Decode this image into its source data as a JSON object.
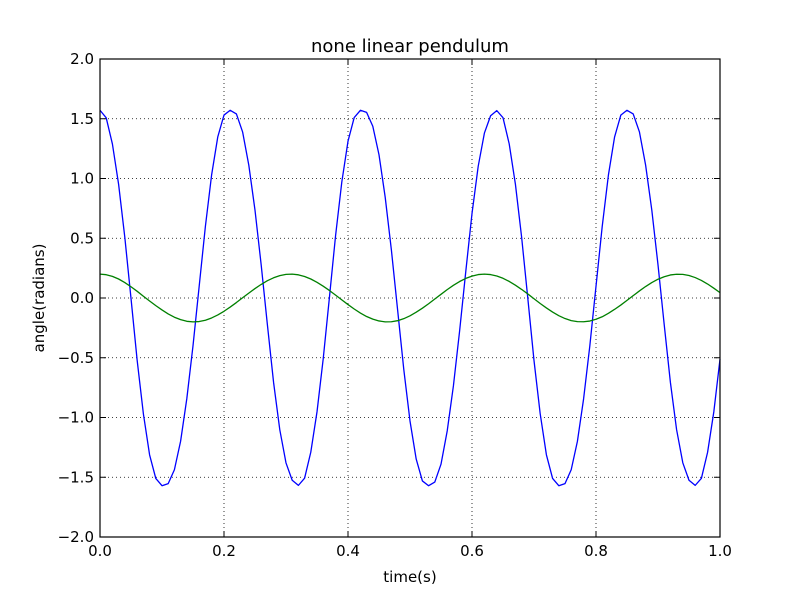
{
  "chart_data": {
    "type": "line",
    "title": "none linear pendulum",
    "xlabel": "time(s)",
    "ylabel": "angle(radians)",
    "xlim": [
      0.0,
      1.0
    ],
    "ylim": [
      -2.0,
      2.0
    ],
    "grid": true,
    "x_ticks": [
      "0.0",
      "0.2",
      "0.4",
      "0.6",
      "0.8",
      "1.0"
    ],
    "y_ticks": [
      "2.0",
      "1.5",
      "1.0",
      "0.5",
      "0.0",
      "−0.5",
      "−1.0",
      "−1.5",
      "−2.0"
    ],
    "series": [
      {
        "color": "#0000ff",
        "x": [
          0.0,
          0.01,
          0.02,
          0.03,
          0.04,
          0.05,
          0.06,
          0.07,
          0.08,
          0.09,
          0.1,
          0.11,
          0.12,
          0.13,
          0.14,
          0.15,
          0.16,
          0.17,
          0.18,
          0.19,
          0.2,
          0.21,
          0.22,
          0.23,
          0.24,
          0.25,
          0.26,
          0.27,
          0.28,
          0.29,
          0.3,
          0.31,
          0.32,
          0.33,
          0.34,
          0.35,
          0.36,
          0.37,
          0.38,
          0.39,
          0.4,
          0.41,
          0.42,
          0.43,
          0.44,
          0.45,
          0.46,
          0.47,
          0.48,
          0.49,
          0.5,
          0.51,
          0.52,
          0.53,
          0.54,
          0.55,
          0.56,
          0.57,
          0.58,
          0.59,
          0.6,
          0.61,
          0.62,
          0.63,
          0.64,
          0.65,
          0.66,
          0.67,
          0.68,
          0.69,
          0.7,
          0.71,
          0.72,
          0.73,
          0.74,
          0.75,
          0.76,
          0.77,
          0.78,
          0.79,
          0.8,
          0.81,
          0.82,
          0.83,
          0.84,
          0.85,
          0.86,
          0.87,
          0.88,
          0.89,
          0.9,
          0.91,
          0.92,
          0.93,
          0.94,
          0.95,
          0.96,
          0.97,
          0.98,
          0.99,
          1.0
        ],
        "y": [
          1.571,
          1.508,
          1.289,
          0.952,
          0.509,
          -0.003,
          -0.525,
          -0.97,
          -1.313,
          -1.51,
          -1.571,
          -1.553,
          -1.437,
          -1.199,
          -0.843,
          -0.4,
          0.1,
          0.6,
          1.029,
          1.349,
          1.531,
          1.571,
          1.54,
          1.39,
          1.112,
          0.735,
          0.276,
          -0.224,
          -0.708,
          -1.103,
          -1.38,
          -1.525,
          -1.568,
          -1.508,
          -1.29,
          -0.953,
          -0.51,
          0.003,
          0.524,
          0.97,
          1.312,
          1.51,
          1.571,
          1.553,
          1.437,
          1.199,
          0.843,
          0.401,
          -0.099,
          -0.599,
          -1.029,
          -1.348,
          -1.531,
          -1.571,
          -1.54,
          -1.391,
          -1.113,
          -0.736,
          -0.277,
          0.223,
          0.707,
          1.102,
          1.38,
          1.525,
          1.568,
          1.509,
          1.29,
          0.953,
          0.511,
          -0.002,
          -0.523,
          -0.969,
          -1.312,
          -1.51,
          -1.571,
          -1.553,
          -1.437,
          -1.2,
          -0.844,
          -0.402,
          0.098,
          0.598,
          1.028,
          1.348,
          1.53,
          1.571,
          1.54,
          1.391,
          1.113,
          0.736,
          0.278,
          -0.222,
          -0.706,
          -1.102,
          -1.379,
          -1.525,
          -1.568,
          -1.509,
          -1.291,
          -0.954,
          -0.512
        ]
      },
      {
        "color": "#008000",
        "x": [
          0.0,
          0.01,
          0.02,
          0.03,
          0.04,
          0.05,
          0.06,
          0.07,
          0.08,
          0.09,
          0.1,
          0.11,
          0.12,
          0.13,
          0.14,
          0.15,
          0.16,
          0.17,
          0.18,
          0.19,
          0.2,
          0.21,
          0.22,
          0.23,
          0.24,
          0.25,
          0.26,
          0.27,
          0.28,
          0.29,
          0.3,
          0.31,
          0.32,
          0.33,
          0.34,
          0.35,
          0.36,
          0.37,
          0.38,
          0.39,
          0.4,
          0.41,
          0.42,
          0.43,
          0.44,
          0.45,
          0.46,
          0.47,
          0.48,
          0.49,
          0.5,
          0.51,
          0.52,
          0.53,
          0.54,
          0.55,
          0.56,
          0.57,
          0.58,
          0.59,
          0.6,
          0.61,
          0.62,
          0.63,
          0.64,
          0.65,
          0.66,
          0.67,
          0.68,
          0.69,
          0.7,
          0.71,
          0.72,
          0.73,
          0.74,
          0.75,
          0.76,
          0.77,
          0.78,
          0.79,
          0.8,
          0.81,
          0.82,
          0.83,
          0.84,
          0.85,
          0.86,
          0.87,
          0.88,
          0.89,
          0.9,
          0.91,
          0.92,
          0.93,
          0.94,
          0.95,
          0.96,
          0.97,
          0.98,
          0.99,
          1.0
        ],
        "y": [
          0.2,
          0.195,
          0.181,
          0.159,
          0.129,
          0.094,
          0.056,
          0.015,
          -0.025,
          -0.064,
          -0.1,
          -0.133,
          -0.161,
          -0.181,
          -0.195,
          -0.2,
          -0.197,
          -0.186,
          -0.167,
          -0.142,
          -0.111,
          -0.076,
          -0.038,
          0.002,
          0.041,
          0.079,
          0.114,
          0.145,
          0.169,
          0.187,
          0.198,
          0.2,
          0.194,
          0.18,
          0.159,
          0.131,
          0.099,
          0.063,
          0.024,
          -0.016,
          -0.055,
          -0.092,
          -0.126,
          -0.155,
          -0.177,
          -0.192,
          -0.2,
          -0.199,
          -0.19,
          -0.173,
          -0.149,
          -0.119,
          -0.085,
          -0.048,
          -0.008,
          0.031,
          0.07,
          0.106,
          0.138,
          0.164,
          0.183,
          0.196,
          0.2,
          0.196,
          0.184,
          0.165,
          0.139,
          0.107,
          0.072,
          0.034,
          -0.006,
          -0.046,
          -0.083,
          -0.118,
          -0.148,
          -0.172,
          -0.189,
          -0.198,
          -0.199,
          -0.193,
          -0.178,
          -0.157,
          -0.128,
          -0.095,
          -0.059,
          -0.02,
          0.02,
          0.059,
          0.096,
          0.129,
          0.157,
          0.178,
          0.193,
          0.199,
          0.198,
          0.188,
          0.171,
          0.147,
          0.117,
          0.082,
          0.045
        ]
      }
    ]
  }
}
